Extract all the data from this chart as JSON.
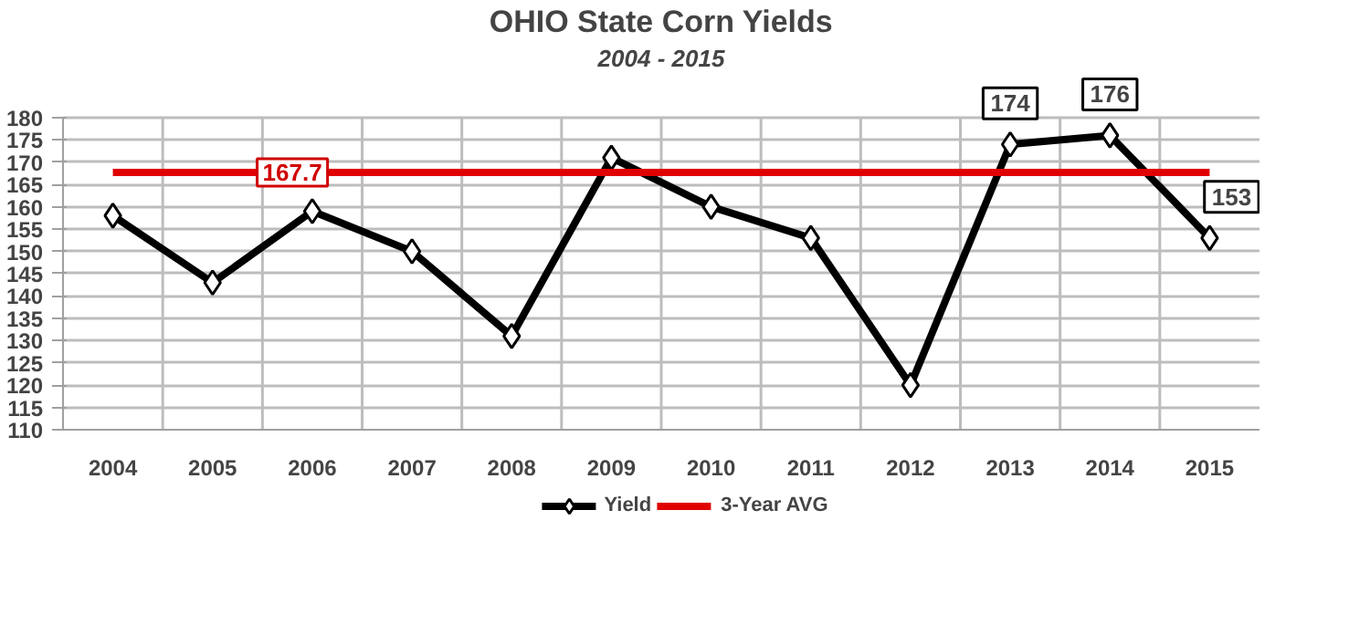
{
  "chart_data": {
    "type": "line",
    "title": "OHIO State Corn Yields",
    "subtitle": "2004 - 2015",
    "categories": [
      "2004",
      "2005",
      "2006",
      "2007",
      "2008",
      "2009",
      "2010",
      "2011",
      "2012",
      "2013",
      "2014",
      "2015"
    ],
    "series": [
      {
        "name": "Yield",
        "color": "#000000",
        "values": [
          158,
          143,
          159,
          150,
          131,
          171,
          160,
          153,
          120,
          174,
          176,
          153
        ],
        "value_labels": [
          null,
          null,
          null,
          null,
          null,
          null,
          null,
          null,
          null,
          "174",
          "176",
          "153"
        ]
      }
    ],
    "ref_lines": [
      {
        "axis": "y",
        "value": 167.7,
        "label": "3-Year AVG",
        "color": "#e00000"
      }
    ],
    "annotations": [
      {
        "text": "167.7",
        "x": "2006",
        "y": 167.7
      }
    ],
    "ylim": [
      110,
      180
    ],
    "yticks": [
      110,
      115,
      120,
      125,
      130,
      135,
      140,
      145,
      150,
      155,
      160,
      165,
      170,
      175,
      180
    ],
    "grid": true,
    "legend": "bottom",
    "marker": "diamond",
    "line_style": "solid"
  }
}
